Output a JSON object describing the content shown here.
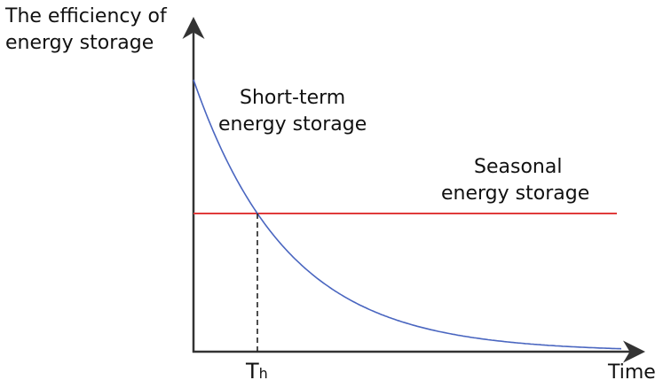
{
  "chart_data": {
    "type": "line",
    "ylabel_line1": "The efficiency of",
    "ylabel_line2": "energy storage",
    "xlabel": "Time",
    "x_tick_main": "T",
    "x_tick_sub": "h",
    "series": [
      {
        "label_line1": "Short-term",
        "label_line2": "energy storage",
        "shape": "exponential decay",
        "color": "#4a66c0"
      },
      {
        "label_line1": "Seasonal",
        "label_line2": "energy storage",
        "shape": "constant",
        "color": "#e03b3b"
      }
    ],
    "annotation": "dashed vertical line at Th where the curves intersect"
  }
}
